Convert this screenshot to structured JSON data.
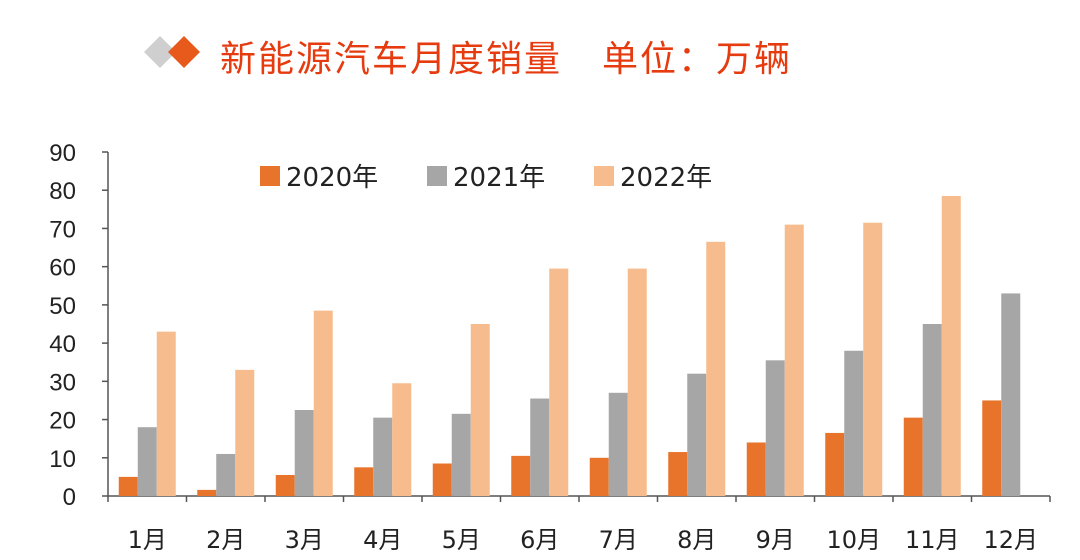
{
  "title": {
    "main": "新能源汽车月度销量",
    "unit": "单位：万辆"
  },
  "chart_data": {
    "type": "bar",
    "categories": [
      "1月",
      "2月",
      "3月",
      "4月",
      "5月",
      "6月",
      "7月",
      "8月",
      "9月",
      "10月",
      "11月",
      "12月"
    ],
    "series": [
      {
        "name": "2020年",
        "color": "#e8732a",
        "values": [
          5.0,
          1.6,
          5.5,
          7.5,
          8.5,
          10.5,
          10.0,
          11.5,
          14.0,
          16.5,
          20.5,
          25.0
        ]
      },
      {
        "name": "2021年",
        "color": "#a6a6a6",
        "values": [
          18.0,
          11.0,
          22.5,
          20.5,
          21.5,
          25.5,
          27.0,
          32.0,
          35.5,
          38.0,
          45.0,
          53.0
        ]
      },
      {
        "name": "2022年",
        "color": "#f7bc8e",
        "values": [
          43.0,
          33.0,
          48.5,
          29.5,
          45.0,
          59.5,
          59.5,
          66.5,
          71.0,
          71.5,
          78.5,
          null
        ]
      }
    ],
    "ylim": [
      0,
      90
    ],
    "yticks": [
      0,
      10,
      20,
      30,
      40,
      50,
      60,
      70,
      80,
      90
    ],
    "xlabel": "",
    "ylabel": "",
    "legend": "top-center",
    "grid": false
  }
}
